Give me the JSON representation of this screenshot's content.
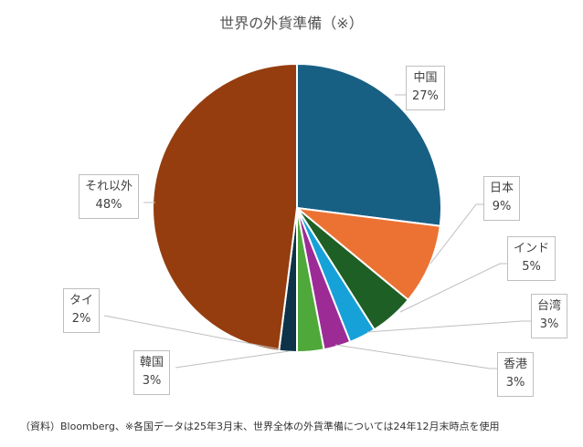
{
  "chart_data": {
    "type": "pie",
    "title": "世界の外貨準備（※）",
    "unit": "%",
    "slices": [
      {
        "label": "中国",
        "value": 27,
        "display": "27%",
        "color": "#185f84"
      },
      {
        "label": "日本",
        "value": 9,
        "display": "9%",
        "color": "#ec7233"
      },
      {
        "label": "インド",
        "value": 5,
        "display": "5%",
        "color": "#1e5f25"
      },
      {
        "label": "台湾",
        "value": 3,
        "display": "3%",
        "color": "#17a1d9"
      },
      {
        "label": "香港",
        "value": 3,
        "display": "3%",
        "color": "#9c2b96"
      },
      {
        "label": "韓国",
        "value": 3,
        "display": "3%",
        "color": "#4fa83a"
      },
      {
        "label": "タイ",
        "value": 2,
        "display": "2%",
        "color": "#0e3348"
      },
      {
        "label": "それ以外",
        "value": 48,
        "display": "48%",
        "color": "#953d0f"
      }
    ]
  },
  "footnote": "（資料）Bloomberg、※各国データは25年3月末、世界全体の外貨準備については24年12月末時点を使用"
}
